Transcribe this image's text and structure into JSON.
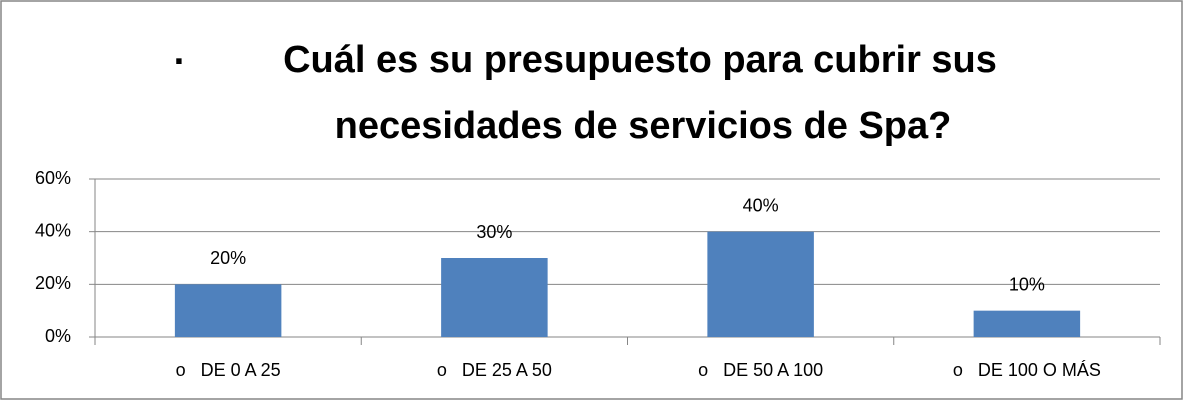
{
  "chart_data": {
    "type": "bar",
    "title_bullet": "·",
    "title": [
      "Cuál es su presupuesto para cubrir sus",
      "necesidades de servicios de Spa?"
    ],
    "categories": [
      "o   DE 0 A 25",
      "o   DE 25 A 50",
      "o   DE 50 A 100",
      "o   DE 100 O MÁS"
    ],
    "values": [
      20,
      30,
      40,
      10
    ],
    "value_labels": [
      "20%",
      "30%",
      "40%",
      "10%"
    ],
    "color": "#4f81bd",
    "ylim": [
      0,
      60
    ],
    "yticks": [
      {
        "value": 0,
        "label": "0%"
      },
      {
        "value": 20,
        "label": "20%"
      },
      {
        "value": 40,
        "label": "40%"
      },
      {
        "value": 60,
        "label": "60%"
      }
    ],
    "grid": true
  }
}
